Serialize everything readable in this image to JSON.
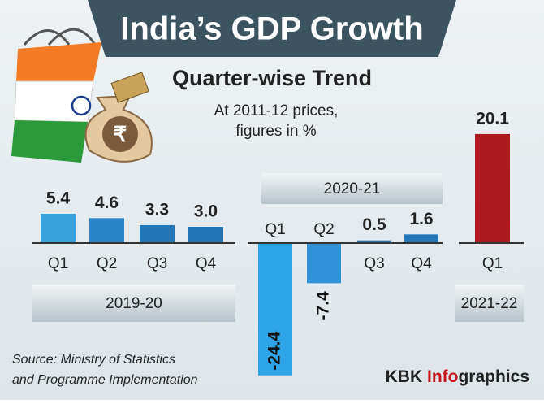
{
  "chart_data": {
    "type": "grouped-bar",
    "title": "India’s GDP Growth",
    "subtitle": "Quarter-wise Trend",
    "note": [
      "At 2011-12 prices,",
      "figures in %"
    ],
    "groups": [
      {
        "name": "2019-20",
        "categories": [
          "Q1",
          "Q2",
          "Q3",
          "Q4"
        ],
        "values": [
          5.4,
          4.6,
          3.3,
          3.0
        ],
        "value_labels": [
          "5.4",
          "4.6",
          "3.3",
          "3.0"
        ],
        "colors": [
          "#39a0de",
          "#2a86c8",
          "#2177b8",
          "#2177b8"
        ]
      },
      {
        "name": "2020-21",
        "categories": [
          "Q1",
          "Q2",
          "Q3",
          "Q4"
        ],
        "values": [
          -24.4,
          -7.4,
          0.5,
          1.6
        ],
        "value_labels": [
          "-24.4",
          "-7.4",
          "0.5",
          "1.6"
        ],
        "colors": [
          "#2ea3e8",
          "#2f92d8",
          "#2177b8",
          "#2177b8"
        ]
      },
      {
        "name": "2021-22",
        "categories": [
          "Q1"
        ],
        "values": [
          20.1
        ],
        "value_labels": [
          "20.1"
        ],
        "colors": [
          "#ad1a1f"
        ]
      }
    ],
    "source": [
      "Source: Ministry of Statistics",
      "and Programme Implementation"
    ],
    "brand": [
      "KBK ",
      "Info",
      "graphics"
    ]
  }
}
